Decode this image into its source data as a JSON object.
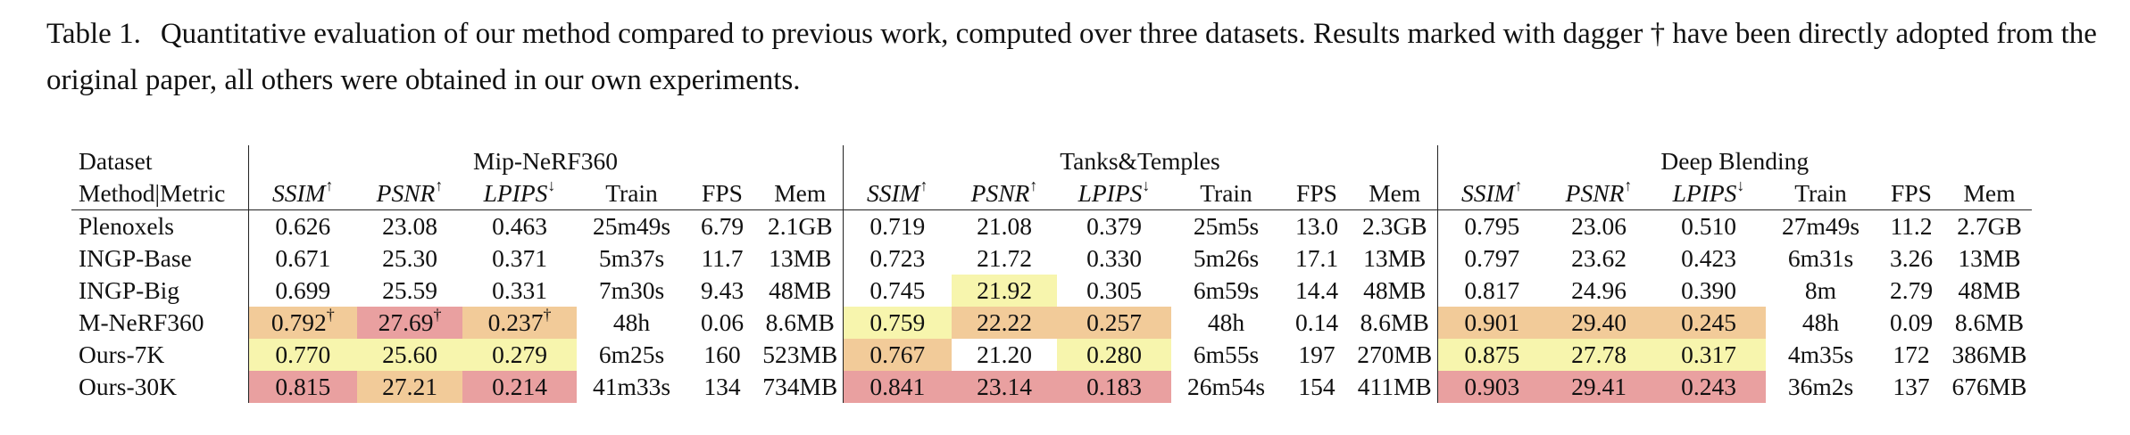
{
  "caption": {
    "label": "Table 1.",
    "text": "Quantitative evaluation of our method compared to previous work, computed over three datasets. Results marked with dagger † have been directly adopted from the original paper, all others were obtained in our own experiments."
  },
  "table": {
    "header_left_top": "Dataset",
    "header_left_bottom": "Method|Metric",
    "datasets": [
      "Mip-NeRF360",
      "Tanks&Temples",
      "Deep Blending"
    ],
    "metrics": [
      {
        "name": "SSIM",
        "arrow": "↑",
        "italic": true
      },
      {
        "name": "PSNR",
        "arrow": "↑",
        "italic": true
      },
      {
        "name": "LPIPS",
        "arrow": "↓",
        "italic": true
      },
      {
        "name": "Train",
        "arrow": "",
        "italic": false
      },
      {
        "name": "FPS",
        "arrow": "",
        "italic": false
      },
      {
        "name": "Mem",
        "arrow": "",
        "italic": false
      }
    ],
    "colors": {
      "red": "#e9a0a0",
      "orange": "#f2cb99",
      "yellow": "#f7f5ad"
    },
    "rows": [
      {
        "method": "Plenoxels",
        "cells": [
          [
            "0.626"
          ],
          [
            "23.08"
          ],
          [
            "0.463"
          ],
          [
            "25m49s"
          ],
          [
            "6.79"
          ],
          [
            "2.1GB"
          ],
          [
            "0.719"
          ],
          [
            "21.08"
          ],
          [
            "0.379"
          ],
          [
            "25m5s"
          ],
          [
            "13.0"
          ],
          [
            "2.3GB"
          ],
          [
            "0.795"
          ],
          [
            "23.06"
          ],
          [
            "0.510"
          ],
          [
            "27m49s"
          ],
          [
            "11.2"
          ],
          [
            "2.7GB"
          ]
        ]
      },
      {
        "method": "INGP-Base",
        "cells": [
          [
            "0.671"
          ],
          [
            "25.30"
          ],
          [
            "0.371"
          ],
          [
            "5m37s"
          ],
          [
            "11.7"
          ],
          [
            "13MB"
          ],
          [
            "0.723"
          ],
          [
            "21.72"
          ],
          [
            "0.330"
          ],
          [
            "5m26s"
          ],
          [
            "17.1"
          ],
          [
            "13MB"
          ],
          [
            "0.797"
          ],
          [
            "23.62"
          ],
          [
            "0.423"
          ],
          [
            "6m31s"
          ],
          [
            "3.26"
          ],
          [
            "13MB"
          ]
        ]
      },
      {
        "method": "INGP-Big",
        "cells": [
          [
            "0.699"
          ],
          [
            "25.59"
          ],
          [
            "0.331"
          ],
          [
            "7m30s"
          ],
          [
            "9.43"
          ],
          [
            "48MB"
          ],
          [
            "0.745"
          ],
          [
            "21.92",
            "yellow"
          ],
          [
            "0.305"
          ],
          [
            "6m59s"
          ],
          [
            "14.4"
          ],
          [
            "48MB"
          ],
          [
            "0.817"
          ],
          [
            "24.96"
          ],
          [
            "0.390"
          ],
          [
            "8m"
          ],
          [
            "2.79"
          ],
          [
            "48MB"
          ]
        ]
      },
      {
        "method": "M-NeRF360",
        "cells": [
          [
            "0.792",
            "orange",
            "†"
          ],
          [
            "27.69",
            "red",
            "†"
          ],
          [
            "0.237",
            "orange",
            "†"
          ],
          [
            "48h"
          ],
          [
            "0.06"
          ],
          [
            "8.6MB"
          ],
          [
            "0.759",
            "yellow"
          ],
          [
            "22.22",
            "orange"
          ],
          [
            "0.257",
            "orange"
          ],
          [
            "48h"
          ],
          [
            "0.14"
          ],
          [
            "8.6MB"
          ],
          [
            "0.901",
            "orange"
          ],
          [
            "29.40",
            "orange"
          ],
          [
            "0.245",
            "orange"
          ],
          [
            "48h"
          ],
          [
            "0.09"
          ],
          [
            "8.6MB"
          ]
        ]
      },
      {
        "method": "Ours-7K",
        "cells": [
          [
            "0.770",
            "yellow"
          ],
          [
            "25.60",
            "yellow"
          ],
          [
            "0.279",
            "yellow"
          ],
          [
            "6m25s"
          ],
          [
            "160"
          ],
          [
            "523MB"
          ],
          [
            "0.767",
            "orange"
          ],
          [
            "21.20"
          ],
          [
            "0.280",
            "yellow"
          ],
          [
            "6m55s"
          ],
          [
            "197"
          ],
          [
            "270MB"
          ],
          [
            "0.875",
            "yellow"
          ],
          [
            "27.78",
            "yellow"
          ],
          [
            "0.317",
            "yellow"
          ],
          [
            "4m35s"
          ],
          [
            "172"
          ],
          [
            "386MB"
          ]
        ]
      },
      {
        "method": "Ours-30K",
        "cells": [
          [
            "0.815",
            "red"
          ],
          [
            "27.21",
            "orange"
          ],
          [
            "0.214",
            "red"
          ],
          [
            "41m33s"
          ],
          [
            "134"
          ],
          [
            "734MB"
          ],
          [
            "0.841",
            "red"
          ],
          [
            "23.14",
            "red"
          ],
          [
            "0.183",
            "red"
          ],
          [
            "26m54s"
          ],
          [
            "154"
          ],
          [
            "411MB"
          ],
          [
            "0.903",
            "red"
          ],
          [
            "29.41",
            "red"
          ],
          [
            "0.243",
            "red"
          ],
          [
            "36m2s"
          ],
          [
            "137"
          ],
          [
            "676MB"
          ]
        ]
      }
    ]
  }
}
